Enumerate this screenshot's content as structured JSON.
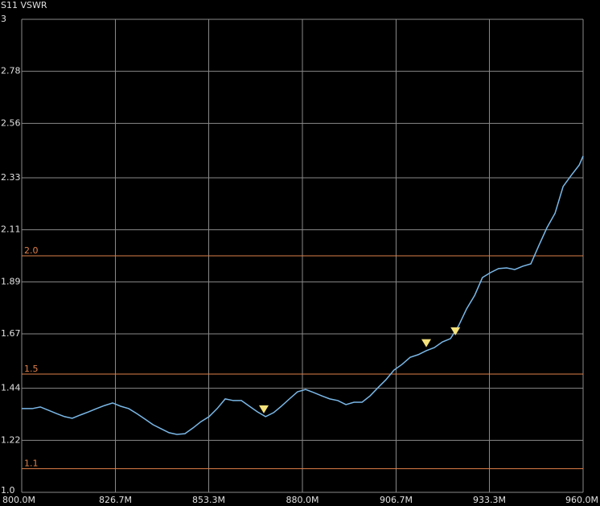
{
  "chart_data": {
    "type": "line",
    "title": "S11 VSWR",
    "x": [
      800,
      803.0,
      805.3,
      807.6,
      809.9,
      812.2,
      814.4,
      816.7,
      819.0,
      821.3,
      823.6,
      825.9,
      828.2,
      830.5,
      832.8,
      835.1,
      837.4,
      839.7,
      842.0,
      844.2,
      846.5,
      848.8,
      851.1,
      853.4,
      855.7,
      858.0,
      860.3,
      862.6,
      864.9,
      867.2,
      869.5,
      871.8,
      874.0,
      876.3,
      878.6,
      880.9,
      883.2,
      885.5,
      887.8,
      890.1,
      892.4,
      894.7,
      897.0,
      899.3,
      901.5,
      903.8,
      906.1,
      908.4,
      910.7,
      913.0,
      915.3,
      917.6,
      919.9,
      922.2,
      924.5,
      926.8,
      929.1,
      931.3,
      933.6,
      935.9,
      938.2,
      940.5,
      942.8,
      945.1,
      947.4,
      949.7,
      952.0,
      954.3,
      956.6,
      958.9,
      960
    ],
    "series": [
      {
        "color": "#7ab8e8",
        "values": [
          1.354,
          1.354,
          1.361,
          1.347,
          1.333,
          1.32,
          1.313,
          1.327,
          1.34,
          1.354,
          1.367,
          1.378,
          1.364,
          1.354,
          1.333,
          1.31,
          1.286,
          1.269,
          1.252,
          1.245,
          1.248,
          1.272,
          1.299,
          1.32,
          1.354,
          1.395,
          1.388,
          1.388,
          1.364,
          1.34,
          1.32,
          1.337,
          1.364,
          1.395,
          1.425,
          1.435,
          1.422,
          1.408,
          1.395,
          1.388,
          1.371,
          1.381,
          1.381,
          1.408,
          1.442,
          1.476,
          1.517,
          1.541,
          1.571,
          1.582,
          1.599,
          1.612,
          1.636,
          1.65,
          1.704,
          1.776,
          1.833,
          1.908,
          1.929,
          1.946,
          1.949,
          1.942,
          1.956,
          1.966,
          2.044,
          2.119,
          2.18,
          2.293,
          2.34,
          2.384,
          2.422
        ]
      }
    ],
    "markers": {
      "color": "#f5e27a",
      "x": [
        869.0,
        915.3,
        923.6
      ],
      "values": [
        1.32,
        1.6,
        1.65
      ]
    },
    "reference_lines": {
      "color": "#e0804a",
      "lines": [
        {
          "value": 2.0,
          "label": "2.0"
        },
        {
          "value": 1.5,
          "label": "1.5"
        },
        {
          "value": 1.1,
          "label": "1.1"
        }
      ]
    },
    "xlim": [
      800,
      960
    ],
    "xticks": [
      {
        "value": 800,
        "label": "800.0M"
      },
      {
        "value": 826.7,
        "label": "826.7M"
      },
      {
        "value": 853.3,
        "label": "853.3M"
      },
      {
        "value": 880,
        "label": "880.0M"
      },
      {
        "value": 906.7,
        "label": "906.7M"
      },
      {
        "value": 933.3,
        "label": "933.3M"
      },
      {
        "value": 960,
        "label": "960.0M"
      }
    ],
    "ylim": [
      1,
      3
    ],
    "yticks": [
      {
        "value": 1,
        "label": "1.0"
      },
      1.22,
      1.44,
      1.67,
      1.89,
      2.11,
      2.33,
      2.56,
      2.78,
      3
    ],
    "grid": true
  }
}
